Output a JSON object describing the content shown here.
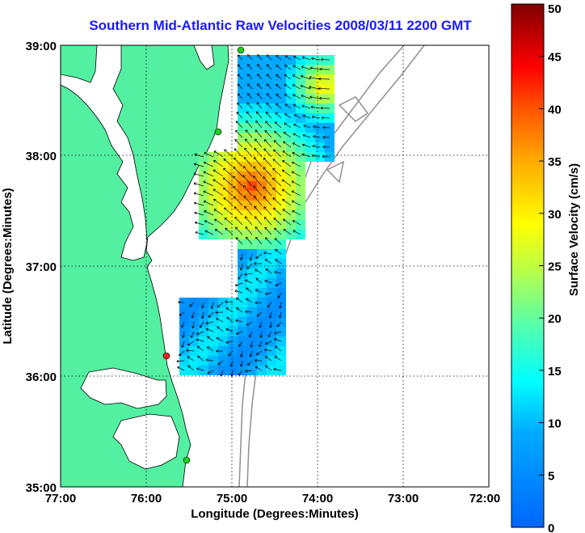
{
  "title": "Southern Mid-Atlantic Raw Velocities 2008/03/11 2200 GMT",
  "x_axis": {
    "label": "Longitude (Degrees:Minutes)",
    "ticks": [
      "77:00",
      "76:00",
      "75:00",
      "74:00",
      "73:00",
      "72:00"
    ]
  },
  "y_axis": {
    "label": "Latitude (Degrees:Minutes)",
    "ticks": [
      "39:00",
      "38:00",
      "37:00",
      "36:00",
      "35:00"
    ]
  },
  "colorbar": {
    "label": "Surface Velocity (cm/s)",
    "ticks": [
      "50",
      "45",
      "40",
      "35",
      "30",
      "25",
      "20",
      "15",
      "10",
      "5",
      "0"
    ],
    "min": 0,
    "max": 50
  },
  "colors": {
    "land": "#52f0a0",
    "title": "#1a1aff",
    "bathymetry": "#909090"
  },
  "sites": [
    {
      "name": "north-site",
      "color": "#22cc22"
    },
    {
      "name": "delmarva-site",
      "color": "#22cc22"
    },
    {
      "name": "virginia-site",
      "color": "#ee2222"
    },
    {
      "name": "hatteras-site",
      "color": "#22cc22"
    }
  ]
}
